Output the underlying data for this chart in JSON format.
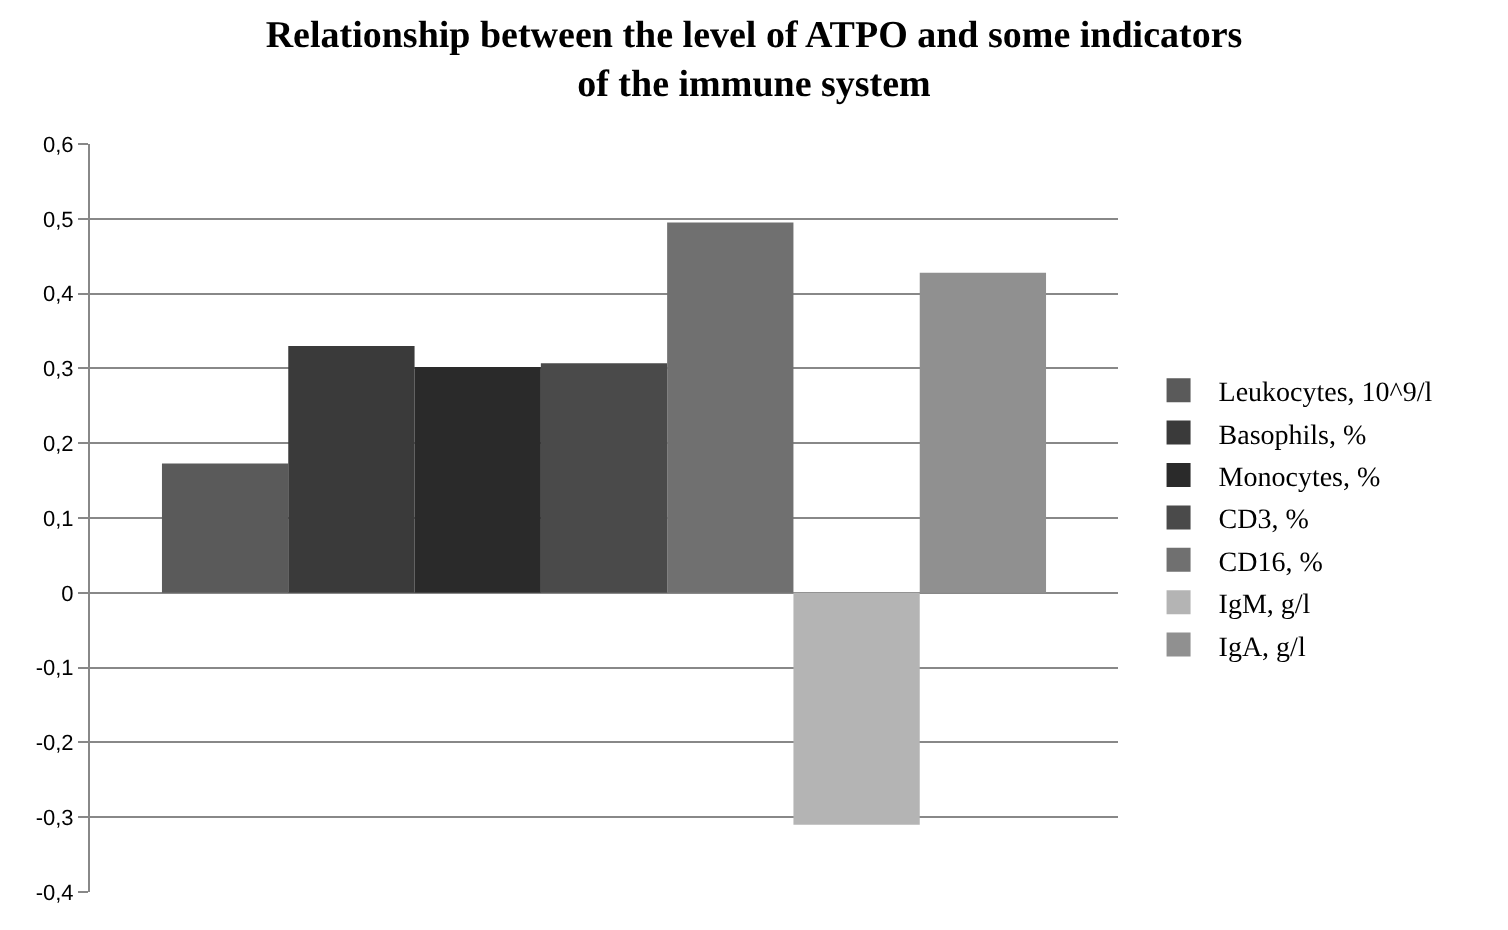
{
  "chart_data": {
    "type": "bar",
    "title": "Relationship between the level of ATPO and some indicators\nof the immune system",
    "categories": [
      null
    ],
    "series": [
      {
        "name": "Leukocytes, 10^9/l",
        "color": "#5a5a5a",
        "values": [
          0.173
        ]
      },
      {
        "name": "Basophils, %",
        "color": "#3a3a3a",
        "values": [
          0.33
        ]
      },
      {
        "name": "Monocytes, %",
        "color": "#2a2a2a",
        "values": [
          0.302
        ]
      },
      {
        "name": "CD3, %",
        "color": "#4a4a4a",
        "values": [
          0.307
        ]
      },
      {
        "name": "CD16, %",
        "color": "#707070",
        "values": [
          0.495
        ]
      },
      {
        "name": "IgM, g/l",
        "color": "#b4b4b4",
        "values": [
          -0.31
        ]
      },
      {
        "name": "IgA, g/l",
        "color": "#909090",
        "values": [
          0.428
        ]
      }
    ],
    "ylim": [
      -0.4,
      0.6
    ],
    "yticks": [
      {
        "value": -0.4,
        "label": "-0,4"
      },
      {
        "value": -0.3,
        "label": "-0,3"
      },
      {
        "value": -0.2,
        "label": "-0,2"
      },
      {
        "value": -0.1,
        "label": "-0,1"
      },
      0,
      {
        "value": 0.1,
        "label": "0,1"
      },
      {
        "value": 0.2,
        "label": "0,2"
      },
      {
        "value": 0.3,
        "label": "0,3"
      },
      {
        "value": 0.4,
        "label": "0,4"
      },
      {
        "value": 0.5,
        "label": "0,5"
      },
      {
        "value": 0.6,
        "label": "0,6"
      }
    ],
    "grid": "y",
    "legend": "right"
  }
}
